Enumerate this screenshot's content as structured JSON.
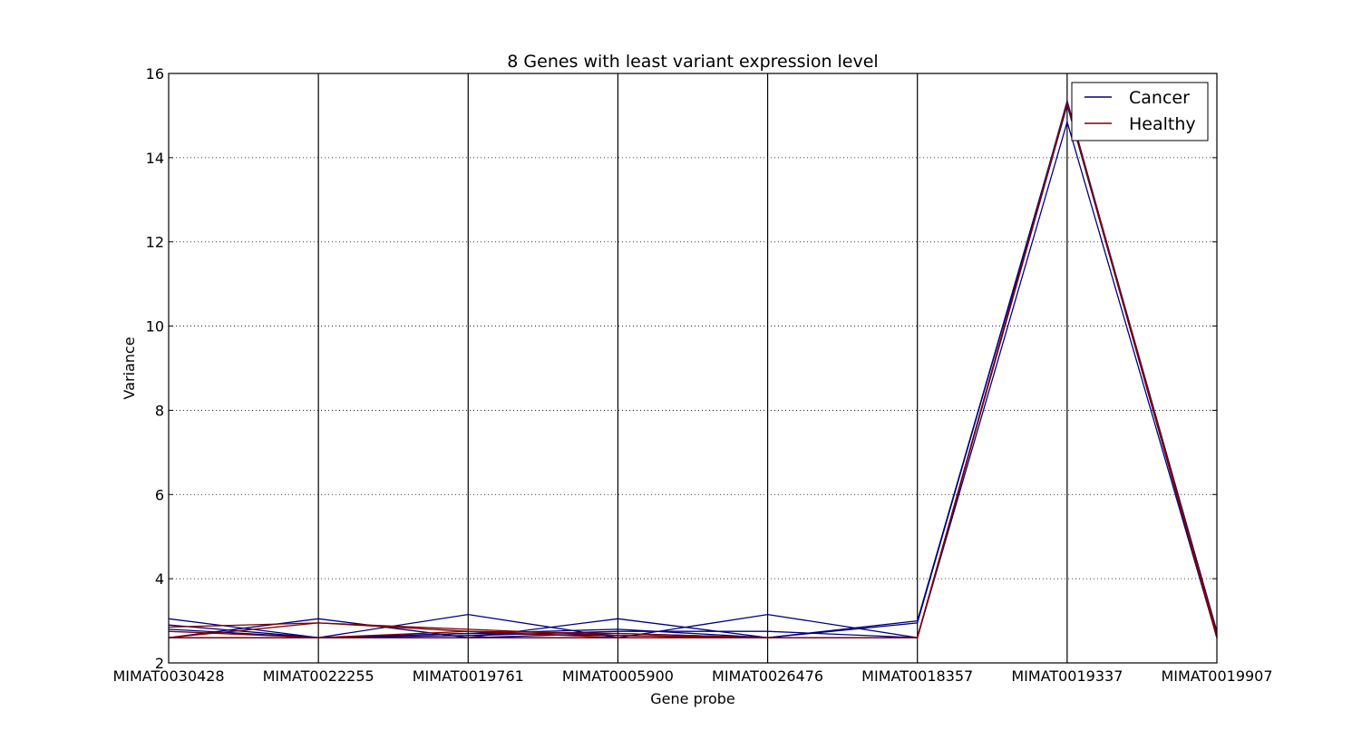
{
  "chart_data": {
    "type": "line",
    "title": "8 Genes with least variant expression level",
    "xlabel": "Gene probe",
    "ylabel": "Variance",
    "categories": [
      "MIMAT0030428",
      "MIMAT0022255",
      "MIMAT0019761",
      "MIMAT0005900",
      "MIMAT0026476",
      "MIMAT0018357",
      "MIMAT0019337",
      "MIMAT0019907"
    ],
    "ylim": [
      2,
      16
    ],
    "yticks": [
      2,
      4,
      6,
      8,
      10,
      12,
      14,
      16
    ],
    "grid": "horizontal dotted lines at y ticks; vertical solid lines at each category",
    "legend": {
      "placement": "top-right",
      "entries": [
        {
          "label": "Cancer",
          "color": "#00007f"
        },
        {
          "label": "Healthy",
          "color": "#7f0000"
        }
      ]
    },
    "series": [
      {
        "group": "Cancer",
        "color": "#00007f",
        "values": [
          3.05,
          2.6,
          2.6,
          2.6,
          2.6,
          2.6,
          15.35,
          2.6
        ]
      },
      {
        "group": "Cancer",
        "color": "#00007f",
        "values": [
          2.6,
          3.05,
          2.6,
          2.6,
          2.6,
          2.6,
          15.3,
          2.65
        ]
      },
      {
        "group": "Cancer",
        "color": "#00007f",
        "values": [
          2.6,
          2.6,
          3.15,
          2.6,
          2.6,
          2.6,
          15.3,
          2.6
        ]
      },
      {
        "group": "Cancer",
        "color": "#00007f",
        "values": [
          2.6,
          2.6,
          2.6,
          3.05,
          2.6,
          2.6,
          15.3,
          2.6
        ]
      },
      {
        "group": "Cancer",
        "color": "#00007f",
        "values": [
          2.6,
          2.6,
          2.6,
          2.6,
          3.15,
          2.6,
          15.3,
          2.6
        ]
      },
      {
        "group": "Cancer",
        "color": "#00007f",
        "values": [
          2.6,
          2.6,
          2.6,
          2.6,
          2.6,
          3.0,
          15.3,
          2.65
        ]
      },
      {
        "group": "Cancer",
        "color": "#00007f",
        "values": [
          2.6,
          2.6,
          2.6,
          2.6,
          2.6,
          2.6,
          14.85,
          2.6
        ]
      },
      {
        "group": "Cancer",
        "color": "#00007f",
        "values": [
          2.9,
          2.6,
          2.7,
          2.8,
          2.6,
          2.95,
          15.3,
          2.7
        ]
      },
      {
        "group": "Cancer",
        "color": "#00007f",
        "values": [
          2.8,
          2.6,
          2.65,
          2.75,
          2.75,
          2.6,
          15.3,
          2.75
        ]
      },
      {
        "group": "Cancer",
        "color": "#00007f",
        "values": [
          2.6,
          2.6,
          2.7,
          2.65,
          2.6,
          2.6,
          15.3,
          2.65
        ]
      },
      {
        "group": "Cancer",
        "color": "#00007f",
        "values": [
          2.6,
          2.6,
          2.6,
          2.7,
          2.6,
          2.6,
          15.25,
          2.6
        ]
      },
      {
        "group": "Healthy",
        "color": "#7f0000",
        "values": [
          2.85,
          2.95,
          2.8,
          2.65,
          2.6,
          2.6,
          15.3,
          2.7
        ]
      },
      {
        "group": "Healthy",
        "color": "#7f0000",
        "values": [
          2.6,
          2.95,
          2.75,
          2.7,
          2.6,
          2.6,
          15.3,
          2.65
        ]
      },
      {
        "group": "Healthy",
        "color": "#7f0000",
        "values": [
          2.75,
          2.6,
          2.75,
          2.6,
          2.6,
          2.6,
          15.3,
          2.6
        ]
      },
      {
        "group": "Healthy",
        "color": "#7f0000",
        "values": [
          2.6,
          2.6,
          2.6,
          2.6,
          2.6,
          2.6,
          15.3,
          2.6
        ]
      }
    ]
  }
}
